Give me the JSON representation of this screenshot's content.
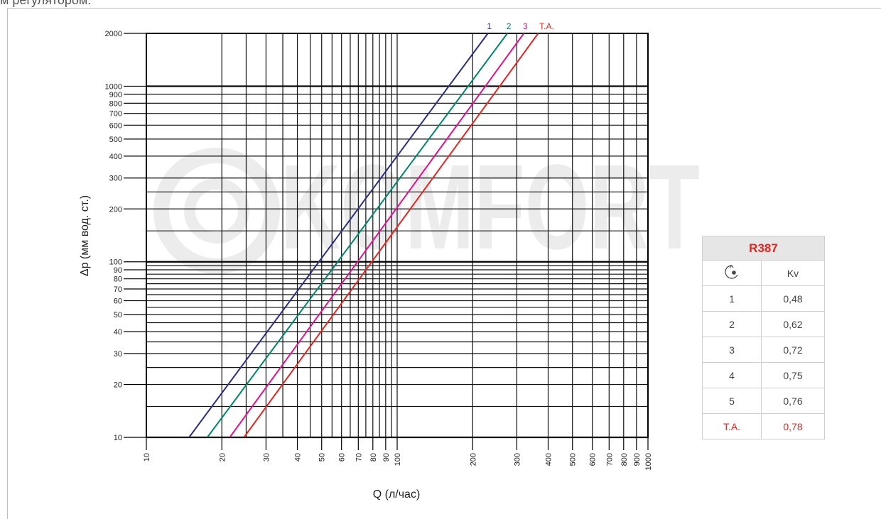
{
  "caption": "м регулятором.",
  "watermark": "KOMFORT",
  "table": {
    "title": "R387",
    "header_icon": "valve-setting-icon",
    "header_kv": "Kv",
    "rows": [
      {
        "setting": "1",
        "kv": "0,48"
      },
      {
        "setting": "2",
        "kv": "0,62"
      },
      {
        "setting": "3",
        "kv": "0,72"
      },
      {
        "setting": "4",
        "kv": "0,75"
      },
      {
        "setting": "5",
        "kv": "0,76"
      },
      {
        "setting": "T.A.",
        "kv": "0,78"
      }
    ]
  },
  "chart_data": {
    "type": "line",
    "xlabel": "Q (л/час)",
    "ylabel": "Δp (мм вод. ст.)",
    "xscale": "log",
    "yscale": "log",
    "xlim": [
      10,
      1000
    ],
    "ylim": [
      10,
      2000
    ],
    "grid": true,
    "x_ticks": [
      "10",
      "20",
      "30",
      "40",
      "50",
      "60",
      "70",
      "80",
      "90",
      "100",
      "200",
      "300",
      "400",
      "500",
      "600",
      "700",
      "800",
      "900",
      "1000"
    ],
    "y_ticks": [
      "10",
      "20",
      "30",
      "40",
      "50",
      "60",
      "70",
      "80",
      "90",
      "100",
      "200",
      "300",
      "400",
      "500",
      "600",
      "700",
      "800",
      "900",
      "1000",
      "2000"
    ],
    "series": [
      {
        "name": "1",
        "color": "#2b2f86",
        "x": [
          14.8,
          230
        ],
        "y": [
          10,
          2000
        ]
      },
      {
        "name": "2",
        "color": "#00876a",
        "x": [
          17.5,
          275
        ],
        "y": [
          10,
          2000
        ]
      },
      {
        "name": "3",
        "color": "#e0148f",
        "x": [
          21.5,
          320
        ],
        "y": [
          10,
          2000
        ]
      },
      {
        "name": "T.A.",
        "color": "#e3261f",
        "x": [
          24.5,
          365
        ],
        "y": [
          10,
          2000
        ]
      }
    ]
  }
}
